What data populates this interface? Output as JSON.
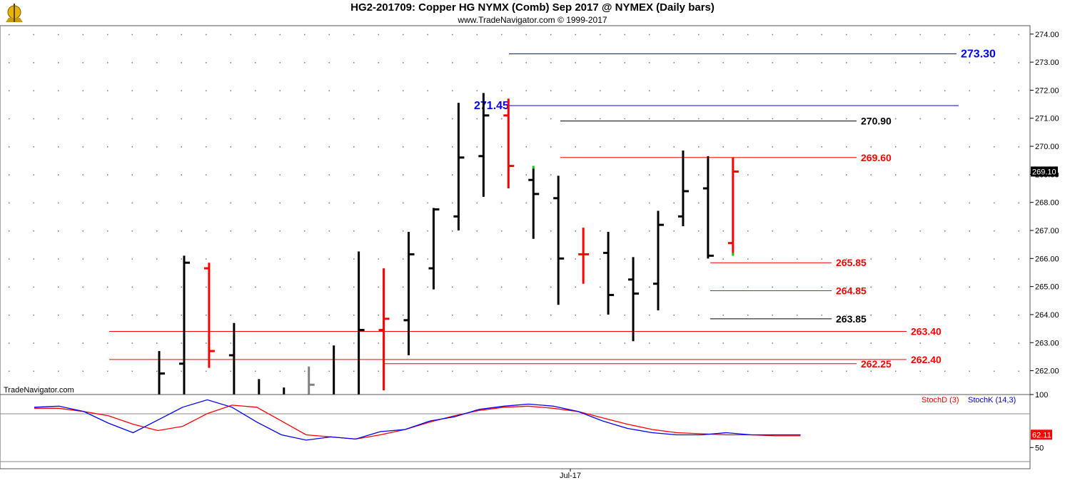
{
  "header": {
    "title": "HG2-201709:  Copper HG NYMX (Comb) Sep 2017 @ NYMEX  (Daily bars)",
    "subtitle": "www.TradeNavigator.com © 1999-2017",
    "watermark": "TradeNavigator.com"
  },
  "colors": {
    "up": "#000000",
    "down": "#ff0000",
    "neutral": "#808080",
    "blue": "#0000ff",
    "stochD": "#ff0000",
    "stochK": "#0000ff",
    "green": "#00cc00"
  },
  "chart_data": [
    {
      "type": "ohlc",
      "title": "HG2-201709:  Copper HG NYMX (Comb) Sep 2017 @ NYMEX  (Daily bars)",
      "ylim": [
        261.15,
        274.3
      ],
      "y_ticks": [
        "274.00",
        "273.00",
        "272.00",
        "271.00",
        "270.00",
        "269.00",
        "268.00",
        "267.00",
        "266.00",
        "265.00",
        "264.00",
        "263.00",
        "262.00"
      ],
      "last_price": "269.10",
      "x_label": "Jul-17",
      "bars": [
        {
          "o": null,
          "h": 262.7,
          "l": 261.15,
          "c": 261.9,
          "color": "black"
        },
        {
          "o": 262.25,
          "h": 266.1,
          "l": 261.15,
          "c": 265.85,
          "color": "black"
        },
        {
          "o": 265.65,
          "h": 265.85,
          "l": 262.1,
          "c": 262.7,
          "color": "red"
        },
        {
          "o": 262.55,
          "h": 263.7,
          "l": 261.15,
          "c": null,
          "color": "black"
        },
        {
          "o": null,
          "h": 261.7,
          "l": 261.15,
          "c": null,
          "color": "black"
        },
        {
          "o": null,
          "h": 261.4,
          "l": 261.15,
          "c": null,
          "color": "black"
        },
        {
          "o": null,
          "h": 262.15,
          "l": 261.15,
          "c": 261.5,
          "color": "gray"
        },
        {
          "o": null,
          "h": 262.9,
          "l": 261.15,
          "c": null,
          "color": "black"
        },
        {
          "o": null,
          "h": 266.25,
          "l": 261.15,
          "c": 263.45,
          "color": "black"
        },
        {
          "o": 263.45,
          "h": 265.65,
          "l": 261.3,
          "c": 263.85,
          "color": "red"
        },
        {
          "o": 263.8,
          "h": 266.95,
          "l": 262.55,
          "c": 266.15,
          "color": "black"
        },
        {
          "o": 265.65,
          "h": 267.8,
          "l": 264.9,
          "c": 267.75,
          "color": "black"
        },
        {
          "o": 267.5,
          "h": 271.55,
          "l": 267.0,
          "c": 269.6,
          "color": "black"
        },
        {
          "o": 269.65,
          "h": 271.9,
          "l": 268.2,
          "c": 271.1,
          "color": "black"
        },
        {
          "o": 271.1,
          "h": 271.7,
          "l": 268.5,
          "c": 269.3,
          "color": "red"
        },
        {
          "o": 268.8,
          "h": 269.2,
          "l": 266.7,
          "c": 268.3,
          "color": "black"
        },
        {
          "o": 268.15,
          "h": 268.95,
          "l": 264.35,
          "c": 266.0,
          "color": "black"
        },
        {
          "o": 266.15,
          "h": 267.1,
          "l": 265.1,
          "c": 266.15,
          "color": "red"
        },
        {
          "o": 266.2,
          "h": 266.95,
          "l": 264.0,
          "c": 264.7,
          "color": "black"
        },
        {
          "o": 265.25,
          "h": 266.05,
          "l": 263.05,
          "c": 264.75,
          "color": "black"
        },
        {
          "o": 265.1,
          "h": 267.7,
          "l": 264.15,
          "c": 267.2,
          "color": "black"
        },
        {
          "o": 267.5,
          "h": 269.85,
          "l": 267.15,
          "c": 268.4,
          "color": "black"
        },
        {
          "o": 268.5,
          "h": 269.65,
          "l": 266.0,
          "c": 266.1,
          "color": "black"
        },
        {
          "o": 266.55,
          "h": 269.6,
          "l": 266.2,
          "c": 269.1,
          "color": "red"
        }
      ],
      "levels": [
        {
          "value": 273.3,
          "label": "273.30",
          "color": "blue",
          "big": true
        },
        {
          "value": 271.45,
          "label": "271.45",
          "color": "blue",
          "big": true
        },
        {
          "value": 270.9,
          "label": "270.90",
          "color": "black",
          "big": false
        },
        {
          "value": 269.6,
          "label": "269.60",
          "color": "red",
          "big": false
        },
        {
          "value": 265.85,
          "label": "265.85",
          "color": "red",
          "big": false
        },
        {
          "value": 264.85,
          "label": "264.85",
          "color": "red",
          "big": false
        },
        {
          "value": 263.85,
          "label": "263.85",
          "color": "black",
          "big": false
        },
        {
          "value": 263.4,
          "label": "263.40",
          "color": "red",
          "big": false
        },
        {
          "value": 262.4,
          "label": "262.40",
          "color": "red",
          "big": false
        },
        {
          "value": 262.25,
          "label": "262.25",
          "color": "red",
          "big": false
        }
      ]
    },
    {
      "type": "line",
      "ylim": [
        30,
        100
      ],
      "y_ticks": [
        "100",
        "50"
      ],
      "legend": [
        "StochD (3)",
        "StochK (14,3)"
      ],
      "last_value": "62.11",
      "series": [
        {
          "name": "StochD (3)",
          "color": "red",
          "values": [
            87,
            87,
            84,
            80,
            72,
            66,
            70,
            82,
            90,
            88,
            75,
            62,
            60,
            58,
            62,
            67,
            74,
            80,
            85,
            88,
            89,
            87,
            84,
            78,
            72,
            67,
            64,
            63,
            62,
            62,
            61,
            61
          ]
        },
        {
          "name": "StochK (14,3)",
          "color": "blue",
          "values": [
            88,
            89,
            84,
            73,
            64,
            76,
            88,
            95,
            88,
            74,
            62,
            57,
            60,
            58,
            65,
            67,
            75,
            79,
            86,
            89,
            91,
            89,
            84,
            75,
            68,
            64,
            62,
            62,
            64,
            62,
            62,
            62
          ]
        }
      ]
    }
  ]
}
